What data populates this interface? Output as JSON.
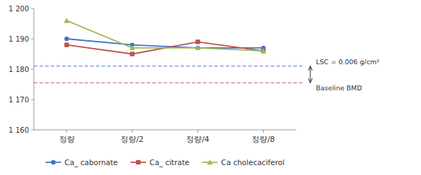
{
  "chart_data": {
    "type": "line",
    "categories": [
      "정량",
      "정량/2",
      "정량/4",
      "정량/8"
    ],
    "series": [
      {
        "name": "Ca_ cabornate",
        "color": "#4472C4",
        "marker": "circle",
        "values": [
          1.19,
          1.188,
          1.187,
          1.187
        ]
      },
      {
        "name": "Ca_ citrate",
        "color": "#C0504D",
        "marker": "square",
        "values": [
          1.188,
          1.185,
          1.189,
          1.186
        ]
      },
      {
        "name": "Ca cholecaciferol",
        "color": "#9BBB59",
        "marker": "triangle",
        "values": [
          1.196,
          1.187,
          1.187,
          1.186
        ]
      }
    ],
    "annotations": [
      {
        "y": 1.181,
        "text": "LSC = 0.006 g/cm²",
        "color": "#4472C4",
        "line_style": "dashed"
      },
      {
        "y": 1.1755,
        "text": "Baseline BMD",
        "color": "#C0504D",
        "line_style": "dashed"
      }
    ],
    "ylim": [
      1.16,
      1.2
    ],
    "yticks": [
      {
        "value": 1.16,
        "label": "1 160"
      },
      {
        "value": 1.17,
        "label": "1 170"
      },
      {
        "value": 1.18,
        "label": "1 180"
      },
      {
        "value": 1.19,
        "label": "1 190"
      },
      {
        "value": 1.2,
        "label": "1 200"
      }
    ],
    "grid": false,
    "legend": "bottom"
  }
}
